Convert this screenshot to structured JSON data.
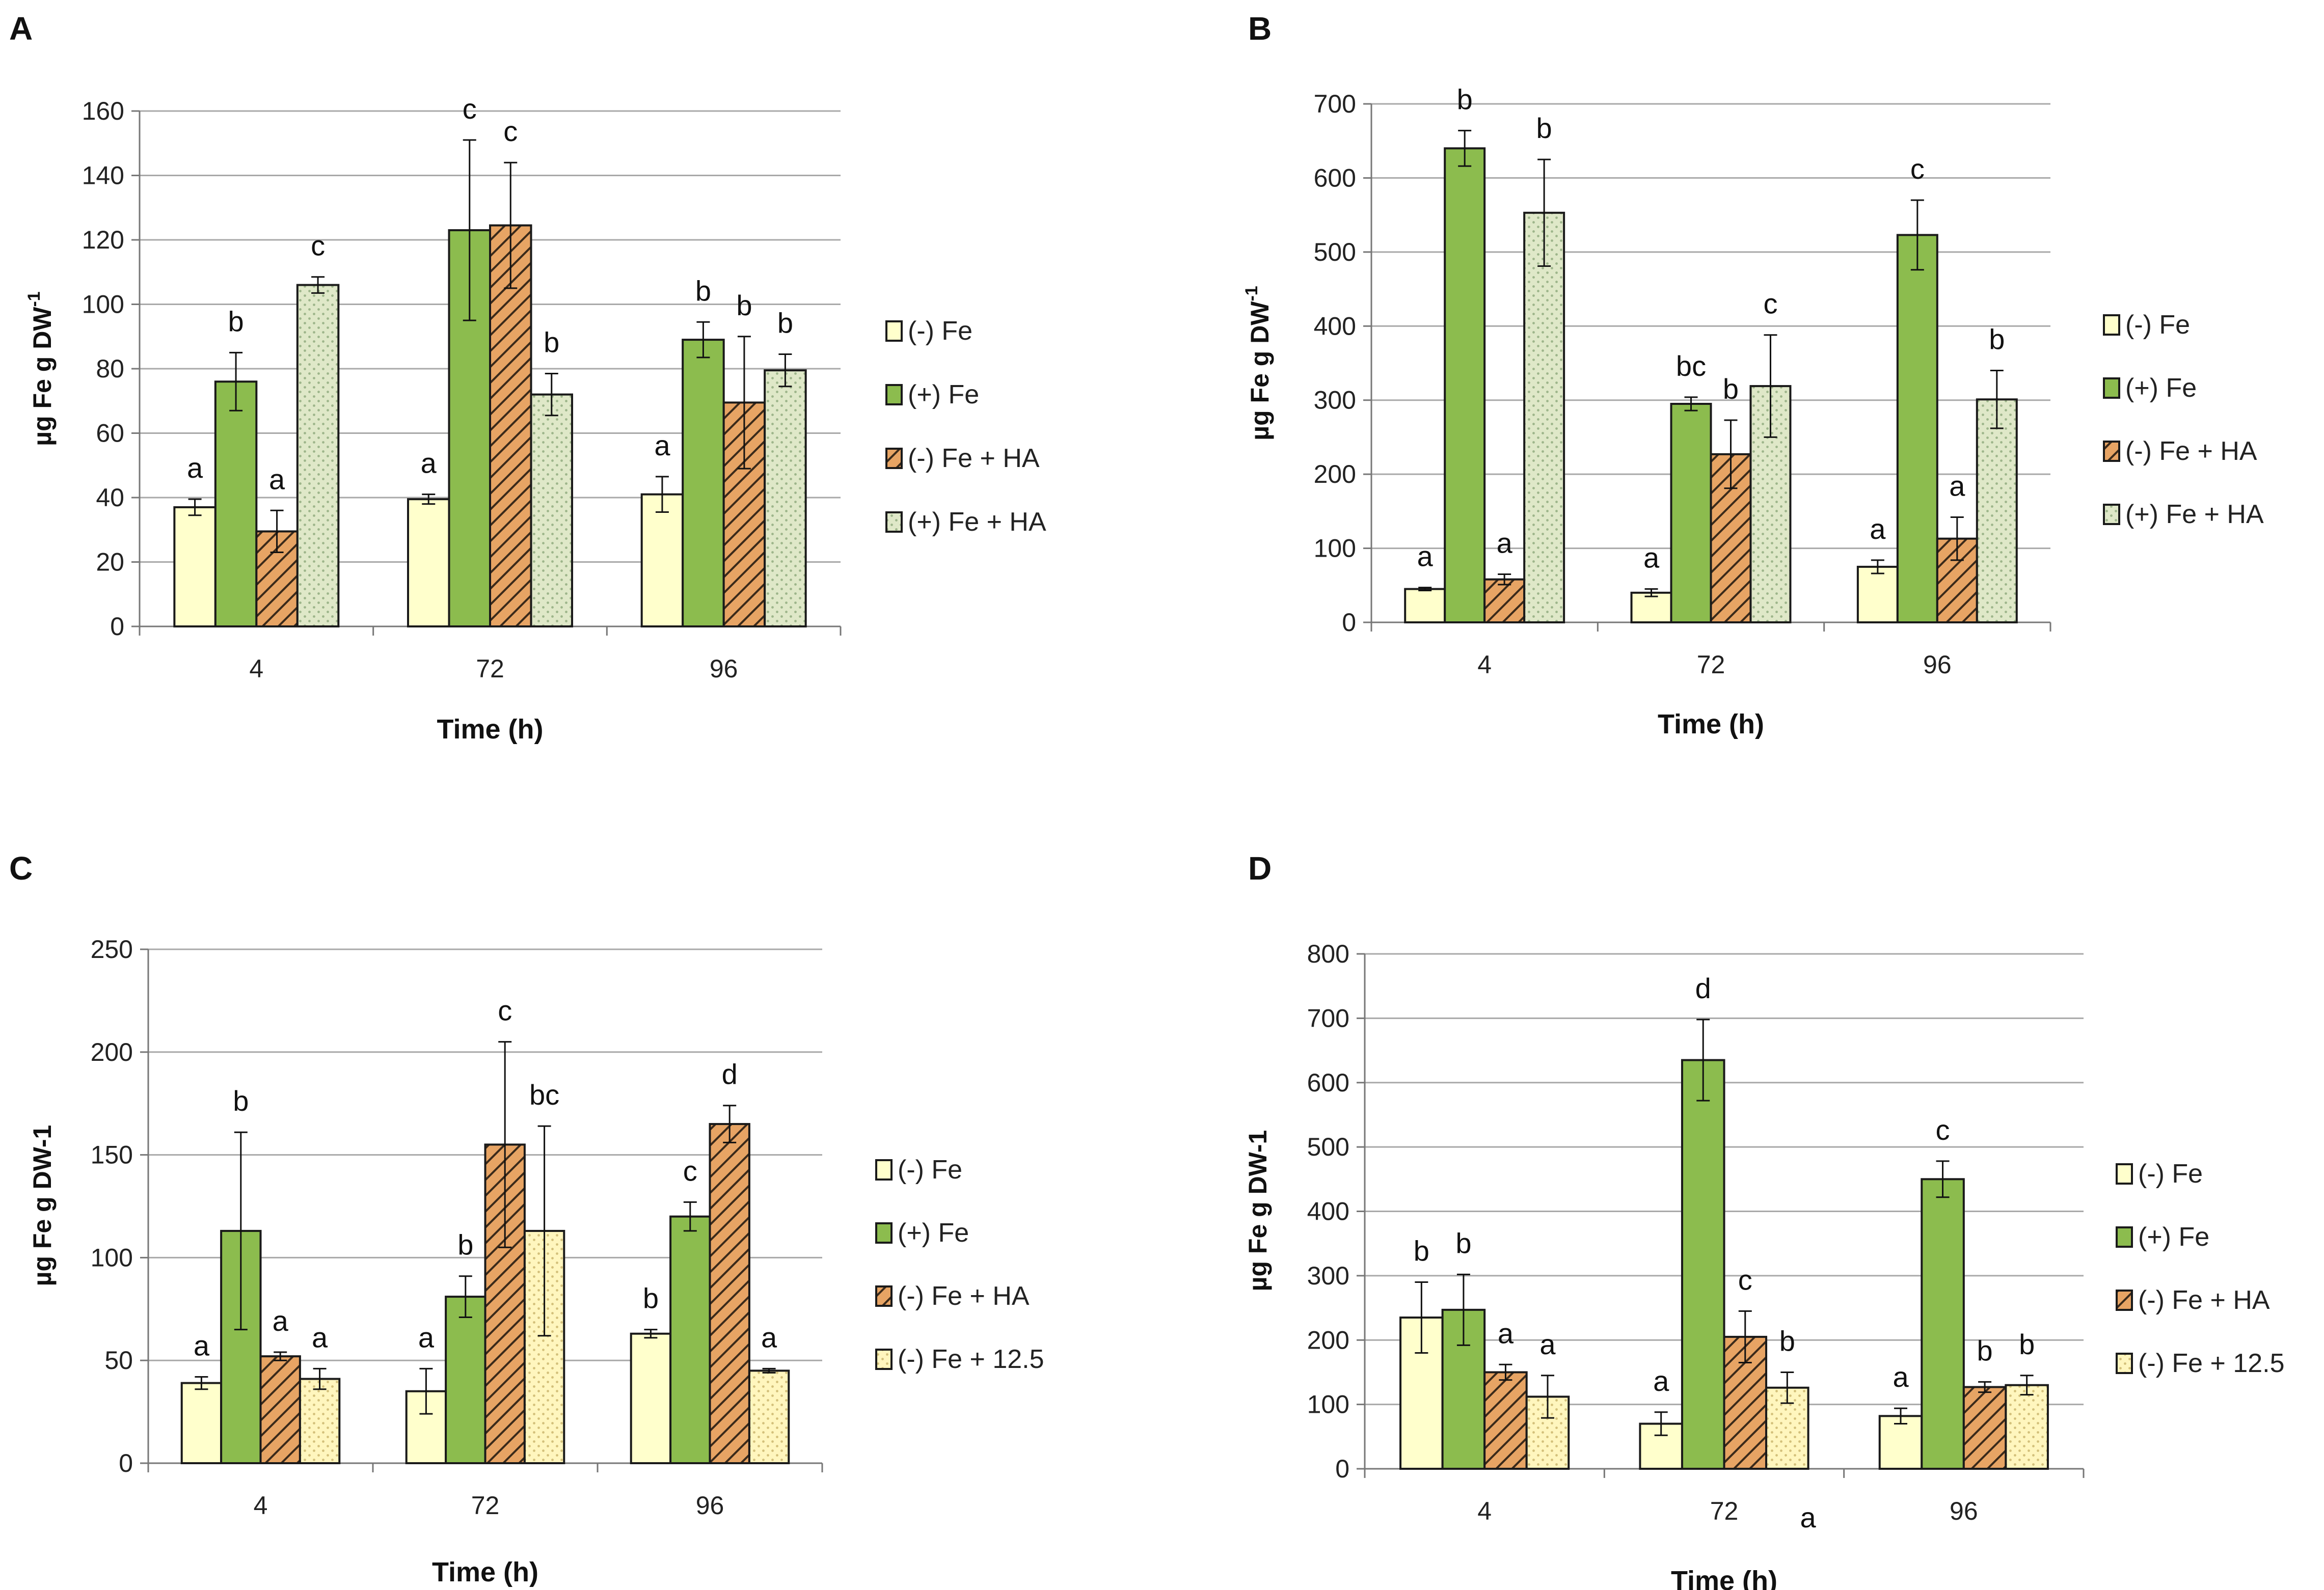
{
  "figure": {
    "colors": {
      "minus_fe": "#ffffcc",
      "plus_fe": "#8cbc4e",
      "minus_fe_ha": "#e7a464",
      "plus_fe_ha": "#dfe8c8",
      "minus_fe_12": "#fff6be",
      "stroke": "#1a1a1a",
      "grid": "#a9a9a9",
      "hatch_line": "#3b2a1a",
      "dots_green": "#9db58a",
      "dots_yellow": "#d3c07a"
    }
  },
  "chart_data": [
    {
      "panel": "A",
      "type": "bar",
      "xlabel": "Time (h)",
      "ylabel_main": "µg Fe g DW",
      "ylabel_sup": "-1",
      "categories": [
        "4",
        "72",
        "96"
      ],
      "ylim": [
        0,
        160
      ],
      "yticks": [
        "0",
        "20",
        "40",
        "60",
        "80",
        "100",
        "120",
        "140",
        "160"
      ],
      "grid": true,
      "legend_position": "right",
      "series": [
        {
          "name": "(-) Fe",
          "style": "minus_fe",
          "values": [
            37,
            39.5,
            41
          ],
          "errors": [
            2.5,
            1.5,
            5.5
          ],
          "letters": [
            "a",
            "a",
            "a"
          ]
        },
        {
          "name": "(+) Fe",
          "style": "plus_fe",
          "values": [
            76,
            123,
            89
          ],
          "errors": [
            9,
            28,
            5.5
          ],
          "letters": [
            "b",
            "c",
            "b"
          ]
        },
        {
          "name": "(-) Fe + HA",
          "style": "minus_fe_ha",
          "values": [
            29.5,
            124.5,
            69.5
          ],
          "errors": [
            6.5,
            19.5,
            20.5
          ],
          "letters": [
            "a",
            "c",
            "b"
          ]
        },
        {
          "name": "(+) Fe + HA",
          "style": "plus_fe_ha",
          "values": [
            106,
            72,
            79.5
          ],
          "errors": [
            2.5,
            6.5,
            5
          ],
          "letters": [
            "c",
            "b",
            "b"
          ]
        }
      ]
    },
    {
      "panel": "B",
      "type": "bar",
      "xlabel": "Time (h)",
      "ylabel_main": "µg Fe g DW",
      "ylabel_sup": "-1",
      "categories": [
        "4",
        "72",
        "96"
      ],
      "ylim": [
        0,
        700
      ],
      "yticks": [
        "0",
        "100",
        "200",
        "300",
        "400",
        "500",
        "600",
        "700"
      ],
      "grid": true,
      "legend_position": "right",
      "series": [
        {
          "name": "(-) Fe",
          "style": "minus_fe",
          "values": [
            45,
            40,
            75
          ],
          "errors": [
            2,
            5,
            9
          ],
          "letters": [
            "a",
            "a",
            "a"
          ]
        },
        {
          "name": "(+) Fe",
          "style": "plus_fe",
          "values": [
            640,
            295,
            523
          ],
          "errors": [
            24,
            9,
            47
          ],
          "letters": [
            "b",
            "bc",
            "c"
          ]
        },
        {
          "name": "(-) Fe + HA",
          "style": "minus_fe_ha",
          "values": [
            58,
            227,
            113
          ],
          "errors": [
            7,
            46,
            29
          ],
          "letters": [
            "a",
            "b",
            "a"
          ]
        },
        {
          "name": "(+) Fe + HA",
          "style": "plus_fe_ha",
          "values": [
            553,
            319,
            301
          ],
          "errors": [
            72,
            69,
            39
          ],
          "letters": [
            "b",
            "c",
            "b"
          ]
        }
      ]
    },
    {
      "panel": "C",
      "type": "bar",
      "xlabel": "Time (h)",
      "ylabel_main": "µg Fe g DW-1",
      "ylabel_sup": "",
      "categories": [
        "4",
        "72",
        "96"
      ],
      "ylim": [
        0,
        250
      ],
      "yticks": [
        "0",
        "50",
        "100",
        "150",
        "200",
        "250"
      ],
      "grid": true,
      "legend_position": "right",
      "series": [
        {
          "name": "(-) Fe",
          "style": "minus_fe",
          "values": [
            39,
            35,
            63
          ],
          "errors": [
            3,
            11,
            2
          ],
          "letters": [
            "a",
            "a",
            "b"
          ]
        },
        {
          "name": "(+) Fe",
          "style": "plus_fe",
          "values": [
            113,
            81,
            120
          ],
          "errors": [
            48,
            10,
            7
          ],
          "letters": [
            "b",
            "b",
            "c"
          ]
        },
        {
          "name": "(-) Fe + HA",
          "style": "minus_fe_ha",
          "values": [
            52,
            155,
            165
          ],
          "errors": [
            2,
            50,
            9
          ],
          "letters": [
            "a",
            "c",
            "d"
          ]
        },
        {
          "name": "(-) Fe + 12.5",
          "style": "minus_fe_12",
          "values": [
            41,
            113,
            45
          ],
          "errors": [
            5,
            51,
            1
          ],
          "letters": [
            "a",
            "bc",
            "a"
          ]
        }
      ]
    },
    {
      "panel": "D",
      "type": "bar",
      "xlabel": "Time (h)",
      "ylabel_main": "µg Fe g DW-1",
      "ylabel_sup": "",
      "categories": [
        "4",
        "72",
        "96"
      ],
      "ylim": [
        0,
        800
      ],
      "yticks": [
        "0",
        "100",
        "200",
        "300",
        "400",
        "500",
        "600",
        "700",
        "800"
      ],
      "grid": true,
      "legend_position": "right",
      "stray_letter": "a",
      "series": [
        {
          "name": "(-) Fe",
          "style": "minus_fe",
          "values": [
            235,
            70,
            82
          ],
          "errors": [
            55,
            18,
            12
          ],
          "letters": [
            "b",
            "a",
            "a"
          ]
        },
        {
          "name": "(+) Fe",
          "style": "plus_fe",
          "values": [
            247,
            635,
            450
          ],
          "errors": [
            55,
            63,
            28
          ],
          "letters": [
            "b",
            "d",
            "c"
          ]
        },
        {
          "name": "(-) Fe + HA",
          "style": "minus_fe_ha",
          "values": [
            150,
            205,
            127
          ],
          "errors": [
            12,
            40,
            8
          ],
          "letters": [
            "a",
            "c",
            "b"
          ]
        },
        {
          "name": "(-) Fe + 12.5",
          "style": "minus_fe_12",
          "values": [
            112,
            126,
            130
          ],
          "errors": [
            33,
            24,
            15
          ],
          "letters": [
            "a",
            "b",
            "b"
          ]
        }
      ]
    }
  ]
}
